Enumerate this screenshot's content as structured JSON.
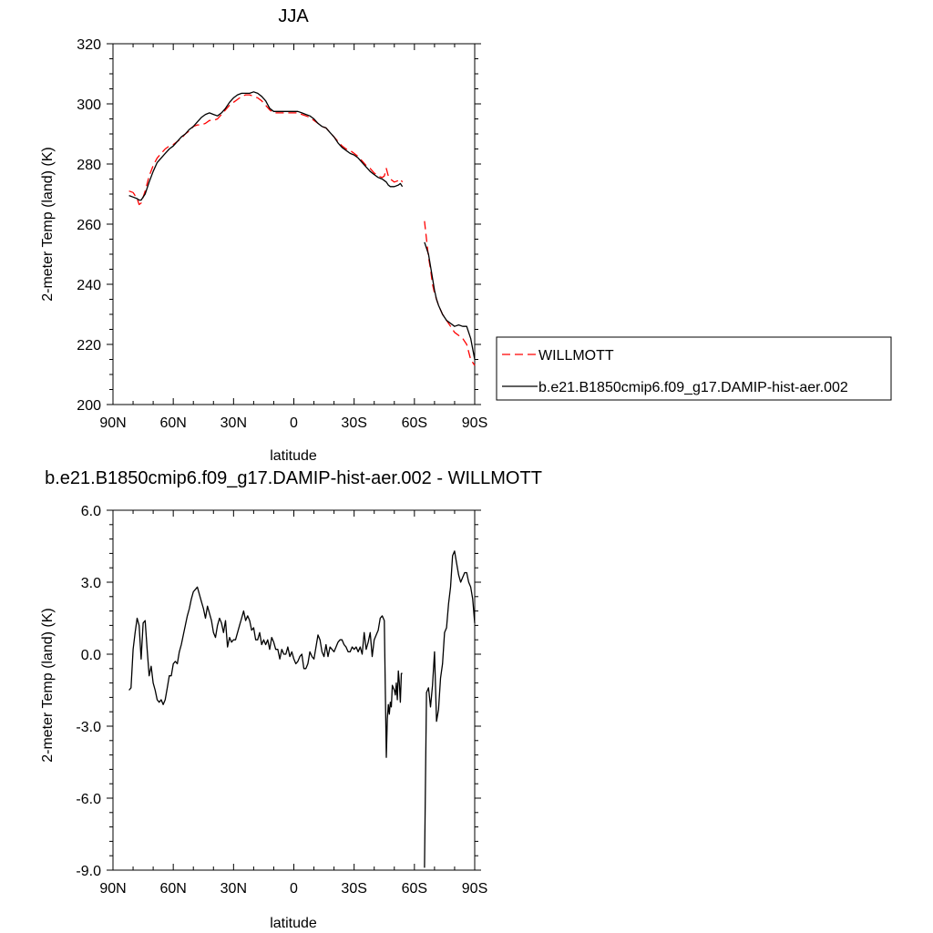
{
  "chart_data": [
    {
      "type": "line",
      "title": "JJA",
      "xlabel": "latitude",
      "ylabel": "2-meter Temp (land) (K)",
      "xlim": [
        90,
        -90
      ],
      "ylim": [
        200,
        320
      ],
      "x_ticks": [
        90,
        60,
        30,
        0,
        -30,
        -60,
        -90
      ],
      "x_tick_labels": [
        "90N",
        "60N",
        "30N",
        "0",
        "30S",
        "60S",
        "90S"
      ],
      "y_ticks": [
        200,
        220,
        240,
        260,
        280,
        300,
        320
      ],
      "y_tick_labels": [
        "200",
        "220",
        "240",
        "260",
        "280",
        "300",
        "320"
      ],
      "legend_position": "right",
      "series": [
        {
          "name": "WILLMOTT",
          "color": "#ff0000",
          "dash": "dashed",
          "segments": [
            {
              "x": [
                82,
                80,
                78,
                77,
                76,
                74,
                72,
                70,
                68,
                66,
                64,
                62,
                60,
                58,
                56,
                54,
                52,
                50,
                48,
                46,
                44,
                42,
                40,
                38,
                36,
                34,
                32,
                30,
                28,
                26,
                24,
                22,
                20,
                18,
                16,
                14,
                12,
                10,
                8,
                6,
                4,
                2,
                0,
                -2,
                -4,
                -6,
                -8,
                -10,
                -12,
                -14,
                -16,
                -18,
                -20,
                -22,
                -24,
                -26,
                -28,
                -30,
                -32,
                -34,
                -36,
                -38,
                -40,
                -42,
                -44,
                -45,
                -46,
                -47,
                -48,
                -50,
                -52,
                -53,
                -54
              ],
              "y": [
                271,
                270.5,
                268.5,
                266.5,
                267,
                271,
                276,
                279.5,
                282,
                283.5,
                285,
                286,
                286.5,
                287.5,
                288.5,
                290,
                291,
                292.5,
                293,
                293,
                293.5,
                294.5,
                294.5,
                295,
                296.5,
                298,
                299.5,
                300.5,
                301.5,
                302.5,
                303,
                303,
                302.5,
                302,
                301,
                299.5,
                298,
                297,
                297,
                297,
                297,
                297,
                297,
                297,
                296.5,
                296,
                295.5,
                294.5,
                293.5,
                292.5,
                292,
                290.5,
                289,
                287.5,
                286,
                285,
                284.5,
                283.5,
                282.5,
                281,
                279.5,
                278.5,
                277,
                276,
                275.5,
                276,
                278.5,
                276,
                275,
                274,
                274.5,
                275,
                274
              ]
            },
            {
              "x": [
                -65,
                -66,
                -67,
                -68,
                -69,
                -70,
                -71,
                -72,
                -74,
                -76,
                -78,
                -80,
                -82,
                -84,
                -86,
                -88,
                -90
              ],
              "y": [
                261,
                255,
                249,
                245,
                240,
                237,
                235,
                233,
                230,
                228,
                226,
                224,
                223,
                222,
                220,
                215,
                213
              ]
            }
          ]
        },
        {
          "name": "b.e21.B1850cmip6.f09_g17.DAMIP-hist-aer.002",
          "color": "#000000",
          "dash": "solid",
          "segments": [
            {
              "x": [
                82,
                80,
                78,
                77,
                76,
                74,
                72,
                70,
                68,
                66,
                64,
                62,
                60,
                58,
                56,
                54,
                52,
                50,
                48,
                46,
                44,
                42,
                40,
                38,
                36,
                34,
                32,
                30,
                28,
                26,
                24,
                22,
                20,
                18,
                16,
                14,
                12,
                10,
                8,
                6,
                4,
                2,
                0,
                -2,
                -4,
                -6,
                -8,
                -10,
                -12,
                -14,
                -16,
                -18,
                -20,
                -22,
                -24,
                -26,
                -28,
                -30,
                -32,
                -34,
                -36,
                -38,
                -40,
                -42,
                -44,
                -45,
                -46,
                -47,
                -48,
                -50,
                -52,
                -53,
                -54
              ],
              "y": [
                269.5,
                269,
                268.5,
                268,
                268,
                270,
                274,
                277.5,
                280.5,
                282,
                283.5,
                285,
                286,
                287.5,
                289,
                290,
                291.5,
                292.5,
                294,
                295.5,
                296.5,
                297,
                296.5,
                296,
                297,
                298.5,
                300.5,
                302,
                303,
                303.5,
                303.5,
                303.5,
                304,
                303.5,
                302.5,
                301,
                298.5,
                297.5,
                297.5,
                297.5,
                297.5,
                297.5,
                297.5,
                297.5,
                297,
                296.5,
                296,
                295,
                293.5,
                292.5,
                292,
                290.5,
                289,
                287,
                285.5,
                284.5,
                283.5,
                283,
                282,
                280.5,
                279,
                277.5,
                276.5,
                275.5,
                275,
                274.5,
                274,
                273,
                272.5,
                272.5,
                273,
                273.5,
                272.5
              ]
            },
            {
              "x": [
                -65,
                -66,
                -67,
                -68,
                -69,
                -70,
                -71,
                -72,
                -74,
                -76,
                -78,
                -80,
                -82,
                -84,
                -86,
                -88,
                -90
              ],
              "y": [
                254,
                252,
                250,
                246,
                242,
                238,
                235,
                233,
                230,
                228,
                227,
                226,
                226.5,
                226,
                226,
                222,
                215
              ]
            }
          ]
        }
      ]
    },
    {
      "type": "line",
      "title": "b.e21.B1850cmip6.f09_g17.DAMIP-hist-aer.002 - WILLMOTT",
      "xlabel": "latitude",
      "ylabel": "2-meter Temp (land) (K)",
      "xlim": [
        90,
        -90
      ],
      "ylim": [
        -9,
        6
      ],
      "x_ticks": [
        90,
        60,
        30,
        0,
        -30,
        -60,
        -90
      ],
      "x_tick_labels": [
        "90N",
        "60N",
        "30N",
        "0",
        "30S",
        "60S",
        "90S"
      ],
      "y_ticks": [
        -9,
        -6,
        -3,
        0,
        3,
        6
      ],
      "y_tick_labels": [
        "-9.0",
        "-6.0",
        "-3.0",
        "0.0",
        "3.0",
        "6.0"
      ],
      "series": [
        {
          "color": "#000000",
          "dash": "solid",
          "segments": [
            {
              "x": [
                82,
                81,
                80,
                79,
                78,
                77,
                76,
                75,
                74,
                73,
                72,
                71,
                70,
                69,
                68,
                67,
                66,
                65,
                64,
                63,
                62,
                61,
                60,
                59,
                58,
                57,
                56,
                55,
                54,
                53,
                52,
                51,
                50,
                49,
                48,
                47,
                46,
                45,
                44,
                43,
                42,
                41,
                40,
                39,
                38,
                37,
                36,
                35,
                34,
                33,
                32,
                31,
                30,
                29,
                28,
                27,
                26,
                25,
                24,
                23,
                22,
                21,
                20,
                19,
                18,
                17,
                16,
                15,
                14,
                13,
                12,
                11,
                10,
                9,
                8,
                7,
                6,
                5,
                4,
                3,
                2,
                1,
                0,
                -1,
                -2,
                -3,
                -4,
                -5,
                -6,
                -7,
                -8,
                -9,
                -10,
                -11,
                -12,
                -13,
                -14,
                -15,
                -16,
                -17,
                -18,
                -19,
                -20,
                -21,
                -22,
                -23,
                -24,
                -25,
                -26,
                -27,
                -28,
                -29,
                -30,
                -31,
                -32,
                -33,
                -34,
                -35,
                -36,
                -37,
                -38,
                -39,
                -40,
                -41,
                -42,
                -43,
                -44,
                -45,
                -45.5,
                -46,
                -46.5,
                -47,
                -47.5,
                -48,
                -48.5,
                -49,
                -50,
                -50.5,
                -51,
                -51.5,
                -52,
                -52.5,
                -53,
                -53.5,
                -54
              ],
              "y": [
                -1.5,
                -1.4,
                0.2,
                0.9,
                1.5,
                1.2,
                -0.2,
                1.3,
                1.4,
                0.2,
                -0.9,
                -0.5,
                -1.2,
                -1.5,
                -1.9,
                -2.0,
                -1.9,
                -2.1,
                -1.9,
                -1.4,
                -0.9,
                -0.9,
                -0.4,
                -0.3,
                -0.4,
                0.1,
                0.4,
                0.8,
                1.2,
                1.6,
                1.9,
                2.3,
                2.6,
                2.7,
                2.8,
                2.5,
                2.2,
                1.9,
                1.5,
                2.0,
                1.7,
                1.4,
                0.9,
                0.7,
                1.2,
                1.5,
                1.3,
                0.9,
                1.4,
                0.3,
                0.7,
                0.5,
                0.6,
                0.6,
                0.9,
                1.2,
                1.5,
                1.8,
                1.4,
                1.6,
                1.4,
                1.0,
                1.1,
                0.6,
                0.6,
                0.9,
                0.4,
                0.6,
                0.4,
                0.6,
                0.2,
                0.7,
                0.5,
                0.2,
                0.2,
                -0.2,
                0.2,
                0.0,
                0.0,
                0.3,
                -0.1,
                0.1,
                -0.2,
                -0.4,
                -0.3,
                -0.1,
                0.0,
                -0.6,
                -0.6,
                -0.4,
                0.1,
                -0.1,
                -0.2,
                0.3,
                0.8,
                0.6,
                0.1,
                -0.1,
                0.4,
                -0.1,
                0.3,
                0.2,
                0.1,
                0.3,
                0.5,
                0.6,
                0.6,
                0.4,
                0.3,
                0.1,
                0.1,
                0.3,
                0.2,
                0.3,
                0.1,
                0.3,
                0.0,
                0.9,
                0.2,
                0.5,
                0.9,
                -0.1,
                0.6,
                0.8,
                1.0,
                1.5,
                1.6,
                1.4,
                -1.5,
                -4.3,
                -2.7,
                -2.1,
                -2.5,
                -2.0,
                -2.2,
                -1.3,
                -1.5,
                -1.7,
                -1.2,
                -1.9,
                -0.7,
                -1.2,
                -2.0,
                -0.8,
                -0.8
              ]
            },
            {
              "x": [
                -65,
                -66,
                -67,
                -68,
                -69,
                -70,
                -71,
                -72,
                -73,
                -74,
                -75,
                -76,
                -77,
                -78,
                -79,
                -80,
                -81,
                -82,
                -83,
                -84,
                -85,
                -86,
                -87,
                -88,
                -89,
                -90
              ],
              "y": [
                -8.9,
                -1.6,
                -1.4,
                -2.2,
                -1.3,
                0.1,
                -2.8,
                -2.3,
                -1.0,
                -0.4,
                0.9,
                1.1,
                2.1,
                2.8,
                4.1,
                4.3,
                3.8,
                3.3,
                3.0,
                3.2,
                3.4,
                3.4,
                3.0,
                2.8,
                2.3,
                1.3
              ]
            }
          ]
        }
      ]
    }
  ]
}
